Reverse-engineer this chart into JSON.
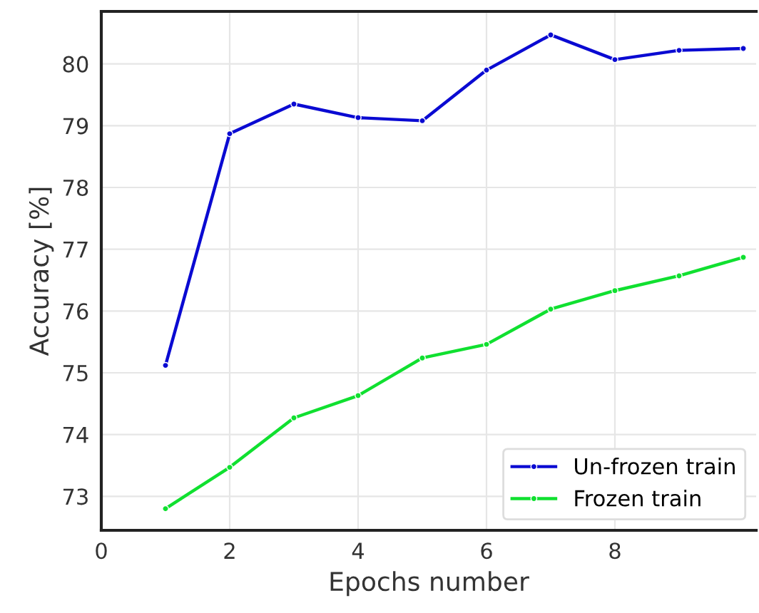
{
  "chart_data": {
    "type": "line",
    "xlabel": "Epochs number",
    "ylabel": "Accuracy [%]",
    "x": [
      1,
      2,
      3,
      4,
      5,
      6,
      7,
      8,
      9,
      10
    ],
    "series": [
      {
        "name": "Un-frozen train",
        "color": "#0a0ad2",
        "values": [
          75.12,
          78.87,
          79.35,
          79.13,
          79.08,
          79.9,
          80.47,
          80.07,
          80.22,
          80.25
        ]
      },
      {
        "name": "Frozen train",
        "color": "#10e030",
        "values": [
          72.8,
          73.47,
          74.27,
          74.63,
          75.24,
          75.46,
          76.03,
          76.33,
          76.57,
          76.87
        ]
      }
    ],
    "xlim": [
      0,
      10.2
    ],
    "ylim": [
      72.45,
      80.85
    ],
    "xticks": [
      0,
      2,
      4,
      6,
      8
    ],
    "yticks": [
      73,
      74,
      75,
      76,
      77,
      78,
      79,
      80
    ],
    "grid": true,
    "legend": "bottom right",
    "marker": "circle",
    "line_style": "solid"
  }
}
